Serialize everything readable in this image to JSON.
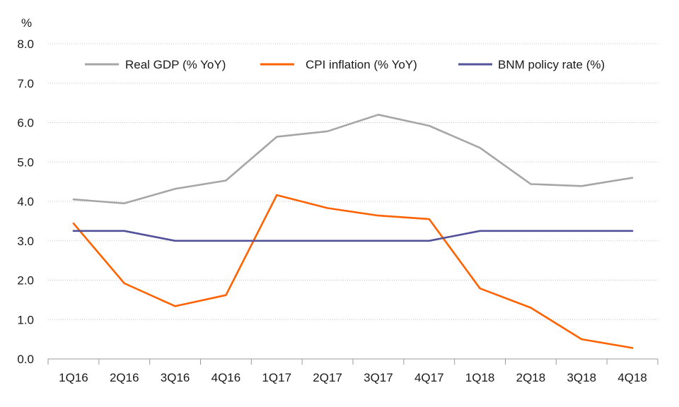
{
  "chart_data": {
    "type": "line",
    "ylabel": "%",
    "ylim": [
      0,
      8
    ],
    "y_ticks": [
      "0.0",
      "1.0",
      "2.0",
      "3.0",
      "4.0",
      "5.0",
      "6.0",
      "7.0",
      "8.0"
    ],
    "categories": [
      "1Q16",
      "2Q16",
      "3Q16",
      "4Q16",
      "1Q17",
      "2Q17",
      "3Q17",
      "4Q17",
      "1Q18",
      "2Q18",
      "3Q18",
      "4Q18"
    ],
    "grid": true,
    "legend_position": "top",
    "series": [
      {
        "name": "Real GDP (% YoY)",
        "color": "#a6a6a6",
        "values": [
          4.05,
          3.95,
          4.32,
          4.53,
          5.64,
          5.78,
          6.2,
          5.92,
          5.36,
          4.44,
          4.39,
          4.6
        ]
      },
      {
        "name": "CPI inflation (% YoY)",
        "color": "#ff6200",
        "values": [
          3.44,
          1.92,
          1.34,
          1.62,
          4.16,
          3.83,
          3.64,
          3.55,
          1.79,
          1.3,
          0.5,
          0.28
        ]
      },
      {
        "name": "BNM policy rate (%)",
        "color": "#525199",
        "values": [
          3.25,
          3.25,
          3.0,
          3.0,
          3.0,
          3.0,
          3.0,
          3.0,
          3.25,
          3.25,
          3.25,
          3.25
        ]
      }
    ]
  }
}
